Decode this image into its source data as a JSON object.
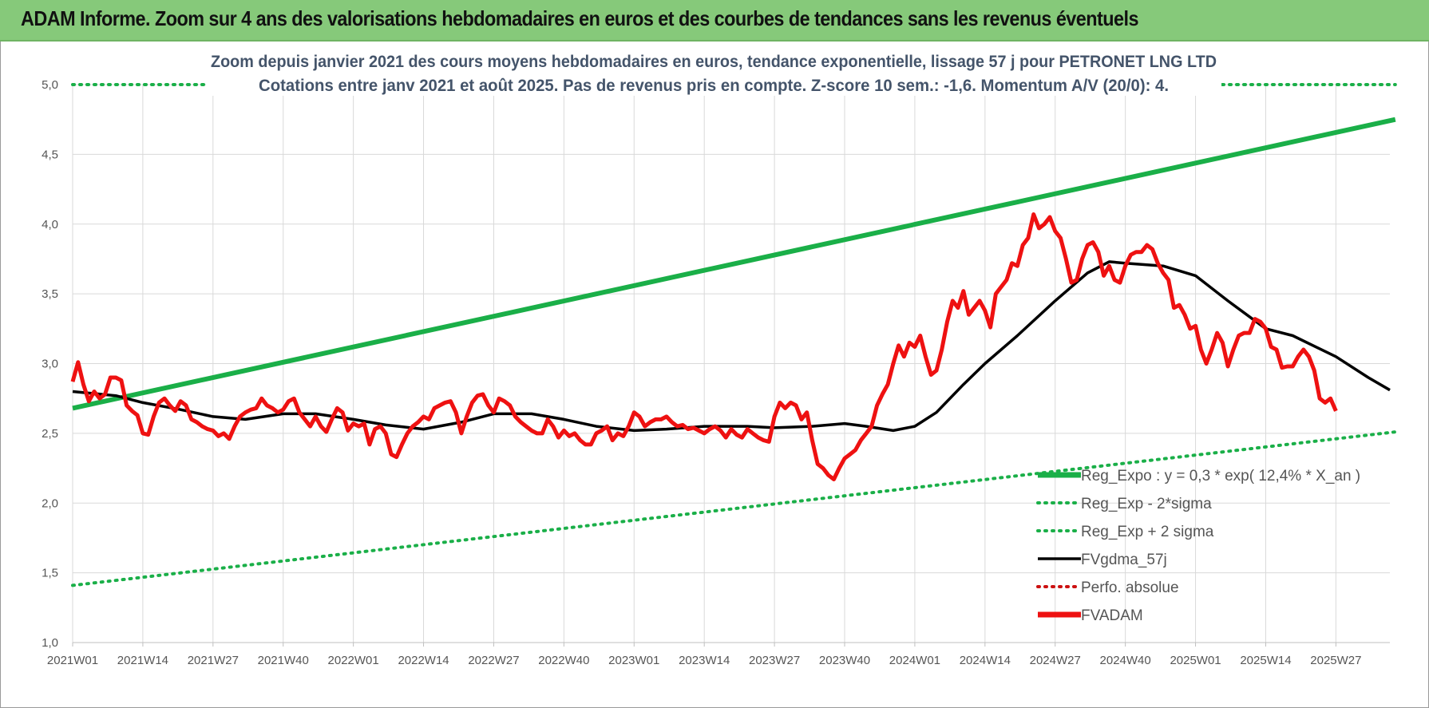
{
  "header": {
    "title": "ADAM Informe. Zoom sur 4 ans des valorisations hebdomadaires en euros et des courbes de tendances sans les revenus éventuels"
  },
  "colors": {
    "header_bg": "#86c97a",
    "green_trend": "#1aaf48",
    "green_band": "#1aaf48",
    "black_ma": "#000000",
    "red_price": "#ee1111",
    "red_dotted": "#cc1111"
  },
  "chart_data": {
    "type": "line",
    "title_line1": "Zoom depuis janvier 2021 des cours moyens hebdomadaires en euros, tendance exponentielle, lissage 57 j pour PETRONET LNG LTD",
    "title_line2": "Cotations entre janv 2021 et août 2025.  Pas de revenus pris en compte. Z-score 10 sem.: -1,6. Momentum A/V (20/0): 4.",
    "x_tick_labels": [
      "2021W01",
      "2021W14",
      "2021W27",
      "2021W40",
      "2022W01",
      "2022W14",
      "2022W27",
      "2022W40",
      "2023W01",
      "2023W14",
      "2023W27",
      "2023W40",
      "2024W01",
      "2024W14",
      "2024W27",
      "2024W40",
      "2025W01",
      "2025W14",
      "2025W27"
    ],
    "x_tick_index": [
      0,
      13,
      26,
      39,
      52,
      65,
      78,
      91,
      104,
      117,
      130,
      143,
      156,
      169,
      182,
      195,
      208,
      221,
      234
    ],
    "x_count": 245,
    "ylim": [
      1.0,
      5.0
    ],
    "y_ticks": [
      "1,0",
      "1,5",
      "2,0",
      "2,5",
      "3,0",
      "3,5",
      "4,0",
      "4,5",
      "5,0"
    ],
    "y_tick_values": [
      1.0,
      1.5,
      2.0,
      2.5,
      3.0,
      3.5,
      4.0,
      4.5,
      5.0
    ],
    "grid": true,
    "legend_position": "bottom-right",
    "series": [
      {
        "name": "Reg_Expo : y = 0,3 * exp( 12,4% *  X_an )",
        "style": "solid-thick",
        "color": "#1aaf48",
        "points": [
          [
            0,
            2.68
          ],
          [
            245,
            4.75
          ]
        ]
      },
      {
        "name": "Reg_Exp - 2*sigma",
        "style": "dotted",
        "color": "#1aaf48",
        "points": [
          [
            0,
            1.41
          ],
          [
            245,
            2.51
          ]
        ]
      },
      {
        "name": "Reg_Exp + 2 sigma",
        "style": "dotted",
        "color": "#1aaf48",
        "points": [
          [
            0,
            5.0
          ],
          [
            245,
            5.0
          ]
        ]
      },
      {
        "name": "FVgdma_57j",
        "style": "solid",
        "color": "#000000",
        "points": [
          [
            0,
            2.8
          ],
          [
            8,
            2.77
          ],
          [
            13,
            2.72
          ],
          [
            20,
            2.67
          ],
          [
            26,
            2.62
          ],
          [
            32,
            2.6
          ],
          [
            39,
            2.64
          ],
          [
            45,
            2.64
          ],
          [
            52,
            2.6
          ],
          [
            58,
            2.56
          ],
          [
            65,
            2.53
          ],
          [
            72,
            2.58
          ],
          [
            78,
            2.64
          ],
          [
            85,
            2.64
          ],
          [
            91,
            2.6
          ],
          [
            97,
            2.55
          ],
          [
            104,
            2.52
          ],
          [
            110,
            2.53
          ],
          [
            117,
            2.55
          ],
          [
            125,
            2.55
          ],
          [
            130,
            2.54
          ],
          [
            137,
            2.55
          ],
          [
            143,
            2.57
          ],
          [
            147,
            2.55
          ],
          [
            152,
            2.52
          ],
          [
            156,
            2.55
          ],
          [
            160,
            2.65
          ],
          [
            165,
            2.85
          ],
          [
            169,
            3.0
          ],
          [
            175,
            3.2
          ],
          [
            182,
            3.45
          ],
          [
            188,
            3.65
          ],
          [
            192,
            3.73
          ],
          [
            195,
            3.72
          ],
          [
            202,
            3.7
          ],
          [
            208,
            3.63
          ],
          [
            214,
            3.45
          ],
          [
            221,
            3.25
          ],
          [
            226,
            3.2
          ],
          [
            234,
            3.05
          ],
          [
            240,
            2.9
          ],
          [
            244,
            2.81
          ]
        ]
      },
      {
        "name": "Perfo. absolue",
        "style": "dotted",
        "color": "#cc1111",
        "points": []
      },
      {
        "name": "FVADAM",
        "style": "solid-thick",
        "color": "#ee1111",
        "points": [
          [
            0,
            2.87
          ],
          [
            1,
            3.01
          ],
          [
            2,
            2.85
          ],
          [
            3,
            2.73
          ],
          [
            4,
            2.8
          ],
          [
            5,
            2.75
          ],
          [
            6,
            2.78
          ],
          [
            7,
            2.9
          ],
          [
            8,
            2.9
          ],
          [
            9,
            2.88
          ],
          [
            10,
            2.7
          ],
          [
            11,
            2.66
          ],
          [
            12,
            2.63
          ],
          [
            13,
            2.5
          ],
          [
            14,
            2.49
          ],
          [
            15,
            2.62
          ],
          [
            16,
            2.72
          ],
          [
            17,
            2.75
          ],
          [
            18,
            2.7
          ],
          [
            19,
            2.66
          ],
          [
            20,
            2.73
          ],
          [
            21,
            2.7
          ],
          [
            22,
            2.6
          ],
          [
            23,
            2.58
          ],
          [
            24,
            2.55
          ],
          [
            25,
            2.53
          ],
          [
            26,
            2.52
          ],
          [
            27,
            2.48
          ],
          [
            28,
            2.5
          ],
          [
            29,
            2.46
          ],
          [
            30,
            2.55
          ],
          [
            31,
            2.62
          ],
          [
            32,
            2.65
          ],
          [
            33,
            2.67
          ],
          [
            34,
            2.68
          ],
          [
            35,
            2.75
          ],
          [
            36,
            2.7
          ],
          [
            37,
            2.68
          ],
          [
            38,
            2.65
          ],
          [
            39,
            2.67
          ],
          [
            40,
            2.73
          ],
          [
            41,
            2.75
          ],
          [
            42,
            2.65
          ],
          [
            43,
            2.6
          ],
          [
            44,
            2.55
          ],
          [
            45,
            2.62
          ],
          [
            46,
            2.55
          ],
          [
            47,
            2.51
          ],
          [
            48,
            2.6
          ],
          [
            49,
            2.68
          ],
          [
            50,
            2.65
          ],
          [
            51,
            2.52
          ],
          [
            52,
            2.57
          ],
          [
            53,
            2.55
          ],
          [
            54,
            2.57
          ],
          [
            55,
            2.42
          ],
          [
            56,
            2.53
          ],
          [
            57,
            2.55
          ],
          [
            58,
            2.5
          ],
          [
            59,
            2.35
          ],
          [
            60,
            2.33
          ],
          [
            61,
            2.42
          ],
          [
            62,
            2.5
          ],
          [
            63,
            2.55
          ],
          [
            64,
            2.58
          ],
          [
            65,
            2.62
          ],
          [
            66,
            2.6
          ],
          [
            67,
            2.68
          ],
          [
            68,
            2.7
          ],
          [
            69,
            2.72
          ],
          [
            70,
            2.73
          ],
          [
            71,
            2.65
          ],
          [
            72,
            2.5
          ],
          [
            73,
            2.62
          ],
          [
            74,
            2.72
          ],
          [
            75,
            2.77
          ],
          [
            76,
            2.78
          ],
          [
            77,
            2.7
          ],
          [
            78,
            2.65
          ],
          [
            79,
            2.75
          ],
          [
            80,
            2.73
          ],
          [
            81,
            2.7
          ],
          [
            82,
            2.62
          ],
          [
            83,
            2.58
          ],
          [
            84,
            2.55
          ],
          [
            85,
            2.52
          ],
          [
            86,
            2.5
          ],
          [
            87,
            2.5
          ],
          [
            88,
            2.6
          ],
          [
            89,
            2.55
          ],
          [
            90,
            2.47
          ],
          [
            91,
            2.52
          ],
          [
            92,
            2.48
          ],
          [
            93,
            2.5
          ],
          [
            94,
            2.45
          ],
          [
            95,
            2.42
          ],
          [
            96,
            2.42
          ],
          [
            97,
            2.5
          ],
          [
            98,
            2.52
          ],
          [
            99,
            2.55
          ],
          [
            100,
            2.45
          ],
          [
            101,
            2.5
          ],
          [
            102,
            2.48
          ],
          [
            103,
            2.55
          ],
          [
            104,
            2.65
          ],
          [
            105,
            2.62
          ],
          [
            106,
            2.55
          ],
          [
            107,
            2.58
          ],
          [
            108,
            2.6
          ],
          [
            109,
            2.6
          ],
          [
            110,
            2.62
          ],
          [
            111,
            2.58
          ],
          [
            112,
            2.55
          ],
          [
            113,
            2.56
          ],
          [
            114,
            2.53
          ],
          [
            115,
            2.54
          ],
          [
            116,
            2.52
          ],
          [
            117,
            2.5
          ],
          [
            118,
            2.53
          ],
          [
            119,
            2.55
          ],
          [
            120,
            2.52
          ],
          [
            121,
            2.47
          ],
          [
            122,
            2.53
          ],
          [
            123,
            2.49
          ],
          [
            124,
            2.47
          ],
          [
            125,
            2.53
          ],
          [
            126,
            2.5
          ],
          [
            127,
            2.47
          ],
          [
            128,
            2.45
          ],
          [
            129,
            2.44
          ],
          [
            130,
            2.62
          ],
          [
            131,
            2.72
          ],
          [
            132,
            2.68
          ],
          [
            133,
            2.72
          ],
          [
            134,
            2.7
          ],
          [
            135,
            2.6
          ],
          [
            136,
            2.65
          ],
          [
            137,
            2.45
          ],
          [
            138,
            2.28
          ],
          [
            139,
            2.25
          ],
          [
            140,
            2.2
          ],
          [
            141,
            2.17
          ],
          [
            142,
            2.25
          ],
          [
            143,
            2.32
          ],
          [
            144,
            2.35
          ],
          [
            145,
            2.38
          ],
          [
            146,
            2.45
          ],
          [
            147,
            2.5
          ],
          [
            148,
            2.55
          ],
          [
            149,
            2.7
          ],
          [
            150,
            2.78
          ],
          [
            151,
            2.85
          ],
          [
            152,
            3.0
          ],
          [
            153,
            3.13
          ],
          [
            154,
            3.05
          ],
          [
            155,
            3.15
          ],
          [
            156,
            3.12
          ],
          [
            157,
            3.2
          ],
          [
            158,
            3.05
          ],
          [
            159,
            2.92
          ],
          [
            160,
            2.95
          ],
          [
            161,
            3.1
          ],
          [
            162,
            3.3
          ],
          [
            163,
            3.45
          ],
          [
            164,
            3.4
          ],
          [
            165,
            3.52
          ],
          [
            166,
            3.35
          ],
          [
            167,
            3.4
          ],
          [
            168,
            3.45
          ],
          [
            169,
            3.38
          ],
          [
            170,
            3.26
          ],
          [
            171,
            3.5
          ],
          [
            172,
            3.55
          ],
          [
            173,
            3.6
          ],
          [
            174,
            3.72
          ],
          [
            175,
            3.7
          ],
          [
            176,
            3.85
          ],
          [
            177,
            3.9
          ],
          [
            178,
            4.07
          ],
          [
            179,
            3.97
          ],
          [
            180,
            4.0
          ],
          [
            181,
            4.05
          ],
          [
            182,
            3.95
          ],
          [
            183,
            3.9
          ],
          [
            184,
            3.75
          ],
          [
            185,
            3.58
          ],
          [
            186,
            3.6
          ],
          [
            187,
            3.75
          ],
          [
            188,
            3.85
          ],
          [
            189,
            3.87
          ],
          [
            190,
            3.8
          ],
          [
            191,
            3.63
          ],
          [
            192,
            3.7
          ],
          [
            193,
            3.6
          ],
          [
            194,
            3.58
          ],
          [
            195,
            3.7
          ],
          [
            196,
            3.78
          ],
          [
            197,
            3.8
          ],
          [
            198,
            3.8
          ],
          [
            199,
            3.85
          ],
          [
            200,
            3.82
          ],
          [
            201,
            3.72
          ],
          [
            202,
            3.65
          ],
          [
            203,
            3.6
          ],
          [
            204,
            3.4
          ],
          [
            205,
            3.42
          ],
          [
            206,
            3.35
          ],
          [
            207,
            3.25
          ],
          [
            208,
            3.27
          ],
          [
            209,
            3.1
          ],
          [
            210,
            3.0
          ],
          [
            211,
            3.1
          ],
          [
            212,
            3.22
          ],
          [
            213,
            3.15
          ],
          [
            214,
            2.98
          ],
          [
            215,
            3.1
          ],
          [
            216,
            3.2
          ],
          [
            217,
            3.22
          ],
          [
            218,
            3.22
          ],
          [
            219,
            3.32
          ],
          [
            220,
            3.3
          ],
          [
            221,
            3.25
          ],
          [
            222,
            3.12
          ],
          [
            223,
            3.1
          ],
          [
            224,
            2.97
          ],
          [
            225,
            2.98
          ],
          [
            226,
            2.98
          ],
          [
            227,
            3.05
          ],
          [
            228,
            3.1
          ],
          [
            229,
            3.05
          ],
          [
            230,
            2.95
          ],
          [
            231,
            2.75
          ],
          [
            232,
            2.72
          ],
          [
            233,
            2.75
          ],
          [
            234,
            2.66
          ]
        ]
      }
    ]
  }
}
